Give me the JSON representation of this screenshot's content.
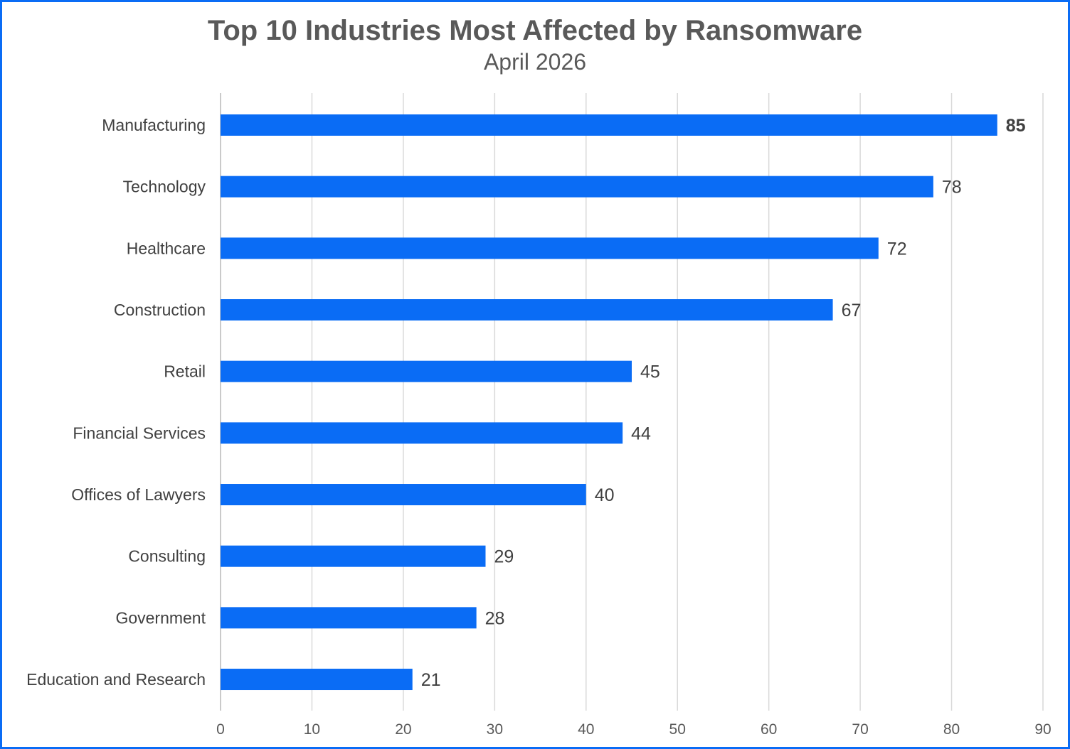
{
  "chart_data": {
    "type": "bar",
    "orientation": "horizontal",
    "title": "Top 10 Industries Most Affected by Ransomware",
    "subtitle": "April 2026",
    "categories": [
      "Manufacturing",
      "Technology",
      "Healthcare",
      "Construction",
      "Retail",
      "Financial Services",
      "Offices of Lawyers",
      "Consulting",
      "Government",
      "Education and Research"
    ],
    "values": [
      85,
      78,
      72,
      67,
      45,
      44,
      40,
      29,
      28,
      21
    ],
    "xlim": [
      0,
      90
    ],
    "xticks": [
      "0",
      "10",
      "20",
      "30",
      "40",
      "50",
      "60",
      "70",
      "80",
      "90"
    ],
    "grid": true,
    "bar_color": "#0a6cf5",
    "highlight_label_bold": "85"
  },
  "colors": {
    "border": "#0a6cf5",
    "bar": "#0a6cf5",
    "grid": "#d9d9d9",
    "text": "#595959"
  }
}
